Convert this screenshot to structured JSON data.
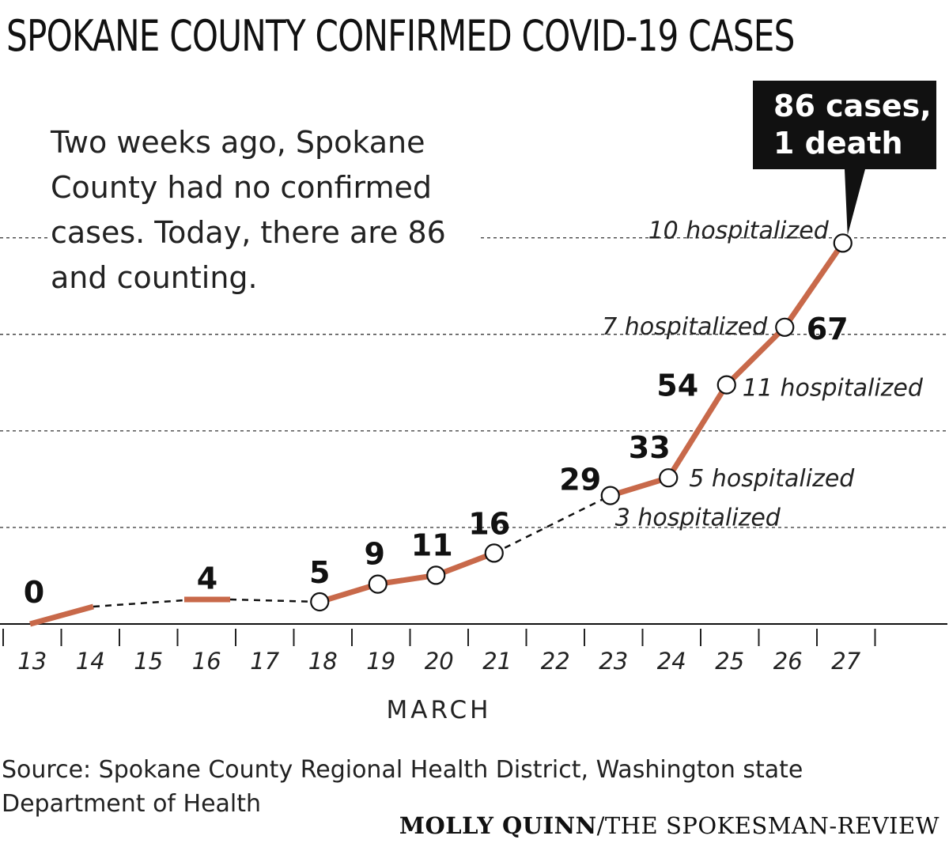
{
  "title": "SPOKANE COUNTY CONFIRMED COVID-19 CASES",
  "intro": "Two weeks ago, Spokane County had no confirmed cases. Today, there are 86 and counting.",
  "source": "Source: Spokane County Regional Health District, Washington state Department of Health",
  "credit": {
    "author": "MOLLY QUINN",
    "outlet": "/THE SPOKESMAN-REVIEW"
  },
  "colors": {
    "line": "#c8694a",
    "text": "#111111",
    "callout_bg": "#111111",
    "grid": "#444444"
  },
  "chart_data": {
    "type": "line",
    "title": "SPOKANE COUNTY CONFIRMED COVID-19 CASES",
    "xlabel": "MARCH",
    "ylabel": "",
    "x_ticks": [
      "13",
      "14",
      "15",
      "16",
      "17",
      "18",
      "19",
      "20",
      "21",
      "22",
      "23",
      "24",
      "25",
      "26",
      "27"
    ],
    "ylim": [
      0,
      95
    ],
    "grid": "horizontal dashed",
    "points": [
      {
        "x": 13,
        "y": 0,
        "label": "0",
        "hospitalized": ""
      },
      {
        "x": 16,
        "y": 4,
        "label": "4",
        "hospitalized": ""
      },
      {
        "x": 18,
        "y": 5,
        "label": "5",
        "hospitalized": ""
      },
      {
        "x": 19,
        "y": 9,
        "label": "9",
        "hospitalized": ""
      },
      {
        "x": 20,
        "y": 11,
        "label": "11",
        "hospitalized": ""
      },
      {
        "x": 21,
        "y": 16,
        "label": "16",
        "hospitalized": ""
      },
      {
        "x": 23,
        "y": 29,
        "label": "29",
        "hospitalized": "3 hospitalized"
      },
      {
        "x": 24,
        "y": 33,
        "label": "33",
        "hospitalized": "5 hospitalized"
      },
      {
        "x": 25,
        "y": 54,
        "label": "54",
        "hospitalized": "11 hospitalized"
      },
      {
        "x": 26,
        "y": 67,
        "label": "67",
        "hospitalized": "7 hospitalized"
      },
      {
        "x": 27,
        "y": 86,
        "label": "",
        "hospitalized": "10 hospitalized"
      }
    ],
    "callout": [
      "86 cases,",
      "1 death"
    ]
  }
}
